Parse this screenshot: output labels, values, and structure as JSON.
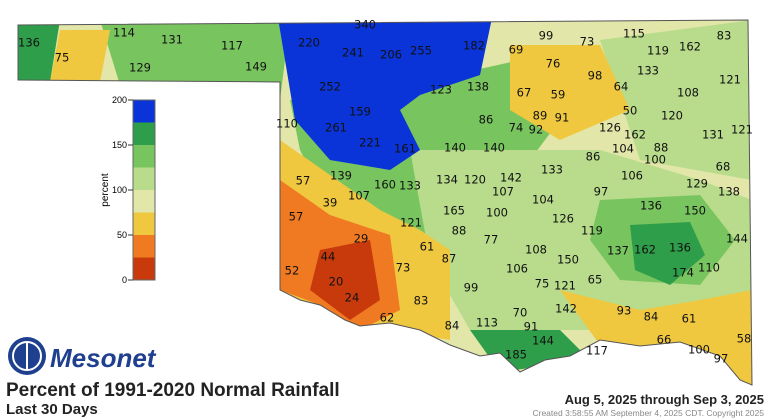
{
  "header": {
    "logo": "Mesonet",
    "title": "Percent of 1991-2020 Normal Rainfall",
    "subtitle": "Last 30 Days",
    "date_range": "Aug 5, 2025 through Sep 3, 2025",
    "created": "Created 3:58:55 AM September 4, 2025 CDT. Copyright 2025"
  },
  "legend": {
    "label": "percent",
    "ticks": [
      0,
      50,
      100,
      150,
      200
    ],
    "colors": [
      "#c83a0c",
      "#f07a22",
      "#f0c840",
      "#e2e6a8",
      "#b8dc8c",
      "#78c45e",
      "#2f9e4a",
      "#0a34d8"
    ]
  },
  "stations": [
    136,
    75,
    114,
    131,
    117,
    129,
    149,
    340,
    220,
    241,
    206,
    255,
    182,
    69,
    99,
    73,
    115,
    119,
    162,
    83,
    76,
    98,
    133,
    121,
    252,
    123,
    138,
    67,
    59,
    64,
    108,
    89,
    91,
    159,
    50,
    120,
    110,
    261,
    86,
    74,
    92,
    126,
    162,
    131,
    121,
    221,
    161,
    140,
    140,
    104,
    88,
    100,
    86,
    133,
    68,
    57,
    139,
    160,
    133,
    134,
    120,
    142,
    107,
    106,
    129,
    138,
    39,
    107,
    97,
    104,
    165,
    100,
    136,
    150,
    57,
    121,
    88,
    126,
    119,
    77,
    29,
    61,
    144,
    137,
    162,
    136,
    87,
    108,
    44,
    150,
    52,
    73,
    106,
    174,
    110,
    20,
    65,
    99,
    75,
    121,
    24,
    83,
    142,
    93,
    70,
    84,
    61,
    62,
    84,
    113,
    91,
    144,
    66,
    58,
    185,
    117,
    100,
    97
  ]
}
